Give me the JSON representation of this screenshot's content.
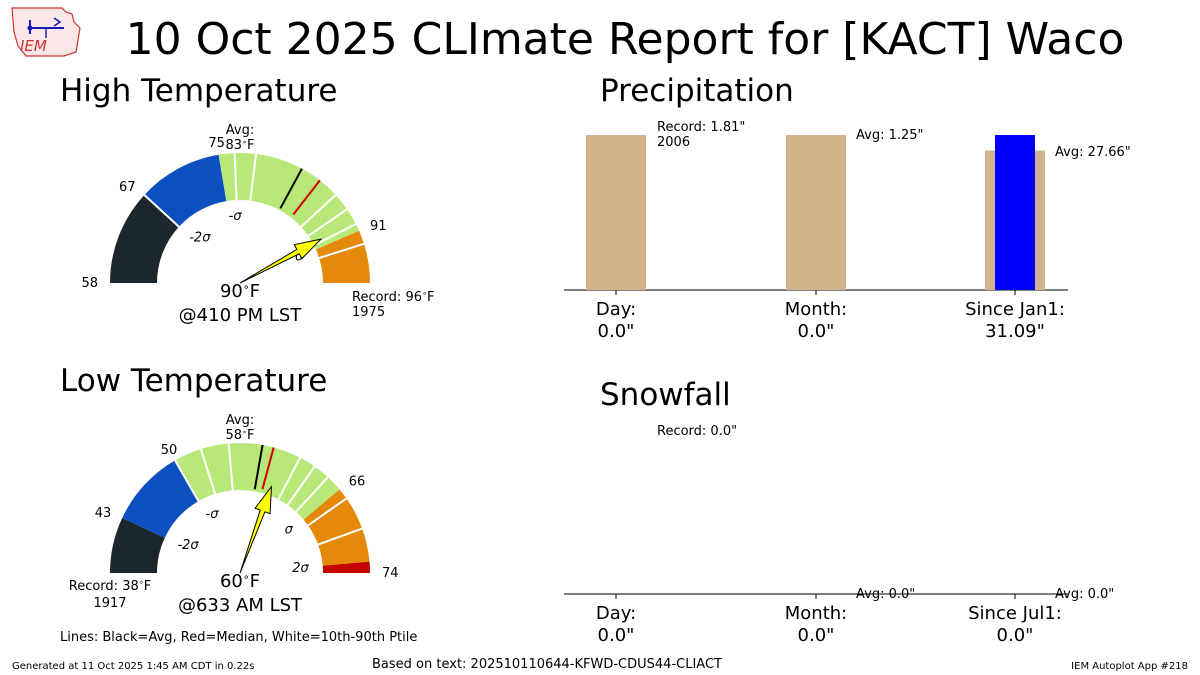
{
  "title": "10 Oct 2025 CLImate Report for [KACT] Waco",
  "logo_text": "IEM",
  "legend_note": "Lines: Black=Avg, Red=Median, White=10th-90th Ptile",
  "footer": {
    "generated": "Generated at 11 Oct 2025 1:45 AM CDT in 0.22s",
    "based_on": "Based on text: 202510110644-KFWD-CDUS44-CLIACT",
    "app": "IEM Autoplot App #218"
  },
  "colors": {
    "dark": "#1c262d",
    "blue": "#0e4fbf",
    "green": "#b8e978",
    "orange": "#e5890a",
    "red": "#c40000",
    "needle": "#ffff00",
    "tan": "#d2b48c",
    "obs_bar": "#0000ff"
  },
  "chart_data": [
    {
      "type": "gauge",
      "title": "High Temperature",
      "range": [
        58,
        96
      ],
      "value": 90,
      "value_label": "90$^\\circ$F",
      "value_text": "90",
      "value_unit": "F",
      "time_label": "@410 PM LST",
      "avg": 83,
      "avg_label": "Avg:",
      "avg_value_text": "83",
      "avg_unit": "F",
      "median": 85,
      "tick_labels": [
        {
          "value": 58,
          "label": "58"
        },
        {
          "value": 67,
          "label": "67"
        },
        {
          "value": 75,
          "label": "75"
        },
        {
          "value": 91,
          "label": "91"
        }
      ],
      "sigma_labels": [
        {
          "value": 67,
          "label": "-2σ"
        },
        {
          "value": 75,
          "label": "-σ"
        },
        {
          "value": 91,
          "label": "σ"
        }
      ],
      "bands": [
        {
          "from": 58,
          "to": 67,
          "color": "dark"
        },
        {
          "from": 67,
          "to": 75,
          "color": "blue"
        },
        {
          "from": 75,
          "to": 91,
          "color": "green"
        },
        {
          "from": 91,
          "to": 96,
          "color": "orange"
        }
      ],
      "white_lines": [
        67,
        76.5,
        78.5,
        87,
        88.7,
        90.3,
        92.3
      ],
      "record_label": "Record: ",
      "record_value_text": "96",
      "record_unit": "F",
      "record_year": "1975"
    },
    {
      "type": "gauge",
      "title": "Low Temperature",
      "range": [
        38,
        74
      ],
      "value": 60,
      "value_text": "60",
      "value_unit": "F",
      "time_label": "@633 AM LST",
      "avg": 58,
      "avg_label": "Avg:",
      "avg_value_text": "58",
      "avg_unit": "F",
      "median": 59,
      "tick_labels": [
        {
          "value": 43,
          "label": "43"
        },
        {
          "value": 50,
          "label": "50"
        },
        {
          "value": 66,
          "label": "66"
        },
        {
          "value": 74,
          "label": "74"
        }
      ],
      "sigma_labels": [
        {
          "value": 43,
          "label": "-2σ"
        },
        {
          "value": 50,
          "label": "-σ"
        },
        {
          "value": 66,
          "label": "σ"
        },
        {
          "value": 73,
          "label": "2σ"
        }
      ],
      "bands": [
        {
          "from": 38,
          "to": 43,
          "color": "dark"
        },
        {
          "from": 43,
          "to": 50,
          "color": "blue"
        },
        {
          "from": 50,
          "to": 66,
          "color": "green"
        },
        {
          "from": 66,
          "to": 73,
          "color": "orange"
        },
        {
          "from": 73,
          "to": 74,
          "color": "red"
        }
      ],
      "white_lines": [
        50,
        52.5,
        55,
        61.5,
        63,
        64.5,
        67,
        70
      ],
      "record_label": "Record: ",
      "record_value_text": "38",
      "record_unit": "F",
      "record_year": "1917"
    },
    {
      "type": "bar",
      "title": "Precipitation",
      "categories": [
        {
          "label": "Day:",
          "value_text": "0.0\""
        },
        {
          "label": "Month:",
          "value_text": "0.0\""
        },
        {
          "label": "Since Jan1:",
          "value_text": "31.09\""
        }
      ],
      "normalized": [
        {
          "name": "record",
          "value": 1.0
        },
        {
          "name": "avg",
          "value": 1.0
        },
        {
          "name": "avg",
          "value": 0.9
        }
      ],
      "observed_normalized": [
        0.0,
        0.0,
        1.0
      ],
      "annotations": [
        "Record: 1.81\"\n2006",
        "Avg: 1.25\"",
        "Avg: 27.66\""
      ],
      "annotation_lines": [
        [
          "Record: 1.81\"",
          "2006"
        ],
        [
          "Avg: 1.25\""
        ],
        [
          "Avg: 27.66\""
        ]
      ]
    },
    {
      "type": "bar",
      "title": "Snowfall",
      "categories": [
        {
          "label": "Day:",
          "value_text": "0.0\""
        },
        {
          "label": "Month:",
          "value_text": "0.0\""
        },
        {
          "label": "Since Jul1:",
          "value_text": "0.0\""
        }
      ],
      "normalized": [
        {
          "name": "record",
          "value": 0.0
        },
        {
          "name": "avg",
          "value": 0.0
        },
        {
          "name": "avg",
          "value": 0.0
        }
      ],
      "observed_normalized": [
        0.0,
        0.0,
        0.0
      ],
      "annotation_lines": [
        [
          "Record: 0.0\""
        ],
        [
          "Avg: 0.0\""
        ],
        [
          "Avg: 0.0\""
        ]
      ]
    }
  ]
}
